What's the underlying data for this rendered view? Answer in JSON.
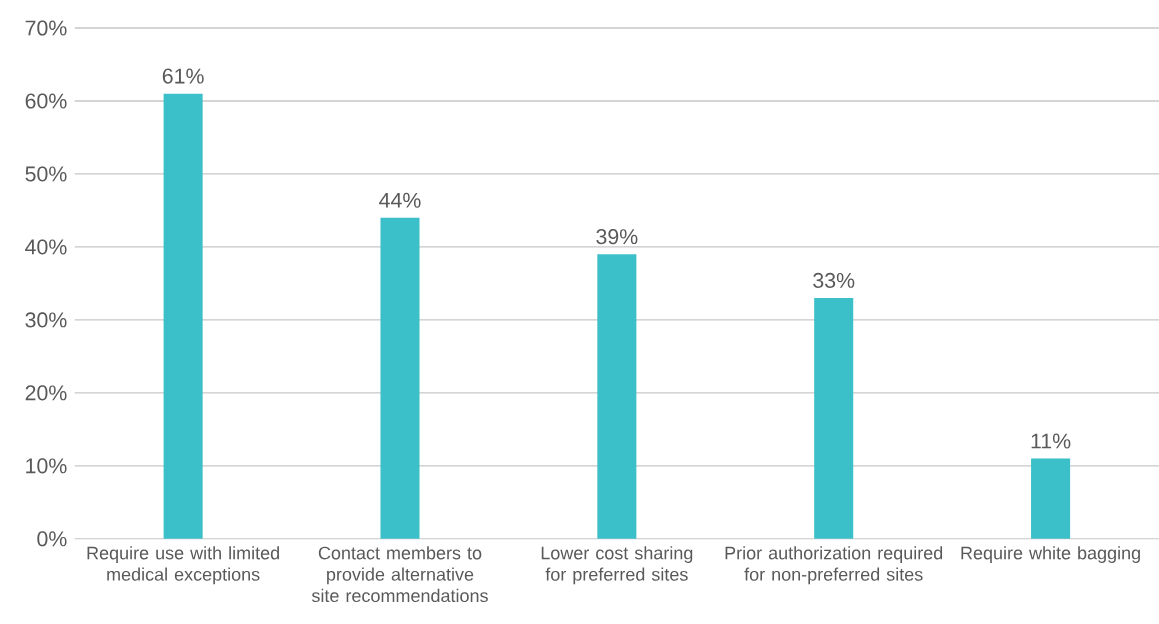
{
  "chart_data": {
    "type": "bar",
    "categories": [
      "Require use with limited medical exceptions",
      "Contact members to provide alternative site recommendations",
      "Lower cost sharing for preferred sites",
      "Prior authorization required for non-preferred sites",
      "Require white bagging"
    ],
    "values": [
      61,
      44,
      39,
      33,
      11
    ],
    "value_labels": [
      "61%",
      "44%",
      "39%",
      "33%",
      "11%"
    ],
    "color": "#3bbfc8",
    "ylim": [
      0,
      70
    ],
    "yticks": [
      {
        "value": 0,
        "label": "0%"
      },
      {
        "value": 10,
        "label": "10%"
      },
      {
        "value": 20,
        "label": "20%"
      },
      {
        "value": 30,
        "label": "30%"
      },
      {
        "value": 40,
        "label": "40%"
      },
      {
        "value": 50,
        "label": "50%"
      },
      {
        "value": 60,
        "label": "60%"
      },
      {
        "value": 70,
        "label": "70%"
      }
    ],
    "grid": "y"
  }
}
